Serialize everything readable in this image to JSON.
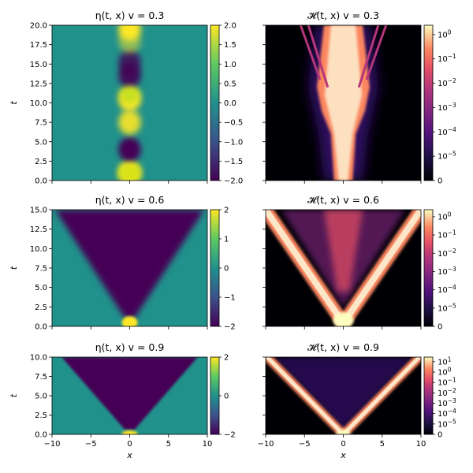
{
  "chart_data": {
    "type": "heatmap",
    "layout": {
      "rows": 3,
      "cols": 2
    },
    "x_axis": {
      "label": "x",
      "lim": [
        -10,
        10
      ],
      "ticks": [
        -10,
        -5,
        0,
        5,
        10
      ],
      "tick_labels": [
        "−10",
        "−5",
        "0",
        "5",
        "10"
      ]
    },
    "panels": [
      {
        "id": "eta-v03",
        "title": "η(t, x)   v = 0.3",
        "quantity": "eta",
        "v": 0.3,
        "ylabel": "t",
        "ylim": [
          0,
          20
        ],
        "yticks": [
          0,
          2.5,
          5,
          7.5,
          10,
          12.5,
          15,
          17.5,
          20
        ],
        "ytick_labels": [
          "0.0",
          "2.5",
          "5.0",
          "7.5",
          "10.0",
          "12.5",
          "15.0",
          "17.5",
          "20.0"
        ],
        "colormap": "viridis",
        "color_range": [
          -2,
          2
        ],
        "colorbar_ticks": [
          2,
          1.5,
          1,
          0.5,
          0,
          -0.5,
          -1,
          -1.5,
          -2
        ],
        "colorbar_labels": [
          "2.0",
          "1.5",
          "1.0",
          "0.5",
          "0.0",
          "−0.5",
          "−1.0",
          "−1.5",
          "−2.0"
        ]
      },
      {
        "id": "H-v03",
        "title": "𝓗(t, x)   v = 0.3",
        "quantity": "H",
        "v": 0.3,
        "ylim": [
          0,
          20
        ],
        "yticks": [
          0,
          2.5,
          5,
          7.5,
          10,
          12.5,
          15,
          17.5,
          20
        ],
        "colormap": "magma",
        "color_scale": "log",
        "colorbar_ticks": [
          "1e0",
          "1e-1",
          "1e-2",
          "1e-3",
          "1e-4",
          "1e-5",
          "0"
        ],
        "colorbar_labels": [
          {
            "base": "10",
            "exp": "0"
          },
          {
            "base": "10",
            "exp": "−1"
          },
          {
            "base": "10",
            "exp": "−2"
          },
          {
            "base": "10",
            "exp": "−3"
          },
          {
            "base": "10",
            "exp": "−4"
          },
          {
            "base": "10",
            "exp": "−5"
          },
          {
            "base": "0",
            "exp": ""
          }
        ]
      },
      {
        "id": "eta-v06",
        "title": "η(t, x)   v = 0.6",
        "quantity": "eta",
        "v": 0.6,
        "ylabel": "t",
        "ylim": [
          0,
          15
        ],
        "yticks": [
          0,
          2.5,
          5,
          7.5,
          10,
          12.5,
          15
        ],
        "ytick_labels": [
          "0.0",
          "2.5",
          "5.0",
          "7.5",
          "10.0",
          "12.5",
          "15.0"
        ],
        "colormap": "viridis",
        "color_range": [
          -2,
          2
        ],
        "colorbar_ticks": [
          2,
          1,
          0,
          -1,
          -2
        ],
        "colorbar_labels": [
          "2",
          "1",
          "0",
          "−1",
          "−2"
        ]
      },
      {
        "id": "H-v06",
        "title": "𝓗(t, x)   v = 0.6",
        "quantity": "H",
        "v": 0.6,
        "ylim": [
          0,
          15
        ],
        "yticks": [
          0,
          2.5,
          5,
          7.5,
          10,
          12.5,
          15
        ],
        "colormap": "magma",
        "color_scale": "log",
        "colorbar_ticks": [
          "1e0",
          "1e-1",
          "1e-2",
          "1e-3",
          "1e-4",
          "1e-5",
          "0"
        ],
        "colorbar_labels": [
          {
            "base": "10",
            "exp": "0"
          },
          {
            "base": "10",
            "exp": "−1"
          },
          {
            "base": "10",
            "exp": "−2"
          },
          {
            "base": "10",
            "exp": "−3"
          },
          {
            "base": "10",
            "exp": "−4"
          },
          {
            "base": "10",
            "exp": "−5"
          },
          {
            "base": "0",
            "exp": ""
          }
        ]
      },
      {
        "id": "eta-v09",
        "title": "η(t, x)   v = 0.9",
        "quantity": "eta",
        "v": 0.9,
        "ylabel": "t",
        "ylim": [
          0,
          10
        ],
        "yticks": [
          0,
          2.5,
          5,
          7.5,
          10
        ],
        "ytick_labels": [
          "0.0",
          "2.5",
          "5.0",
          "7.5",
          "10.0"
        ],
        "colormap": "viridis",
        "color_range": [
          -2,
          2
        ],
        "colorbar_ticks": [
          2,
          0,
          -2
        ],
        "colorbar_labels": [
          "2",
          "0",
          "−2"
        ]
      },
      {
        "id": "H-v09",
        "title": "𝓗(t, x)   v = 0.9",
        "quantity": "H",
        "v": 0.9,
        "ylim": [
          0,
          10
        ],
        "yticks": [
          0,
          2.5,
          5,
          7.5,
          10
        ],
        "colormap": "magma",
        "color_scale": "log",
        "colorbar_ticks": [
          "1e1",
          "1e0",
          "1e-1",
          "1e-2",
          "1e-3",
          "1e-4",
          "1e-5",
          "0"
        ],
        "colorbar_labels": [
          {
            "base": "10",
            "exp": "1"
          },
          {
            "base": "10",
            "exp": "0"
          },
          {
            "base": "10",
            "exp": "−1"
          },
          {
            "base": "10",
            "exp": "−2"
          },
          {
            "base": "10",
            "exp": "−3"
          },
          {
            "base": "10",
            "exp": "−4"
          },
          {
            "base": "10",
            "exp": "−5"
          },
          {
            "base": "0",
            "exp": ""
          }
        ]
      }
    ]
  }
}
